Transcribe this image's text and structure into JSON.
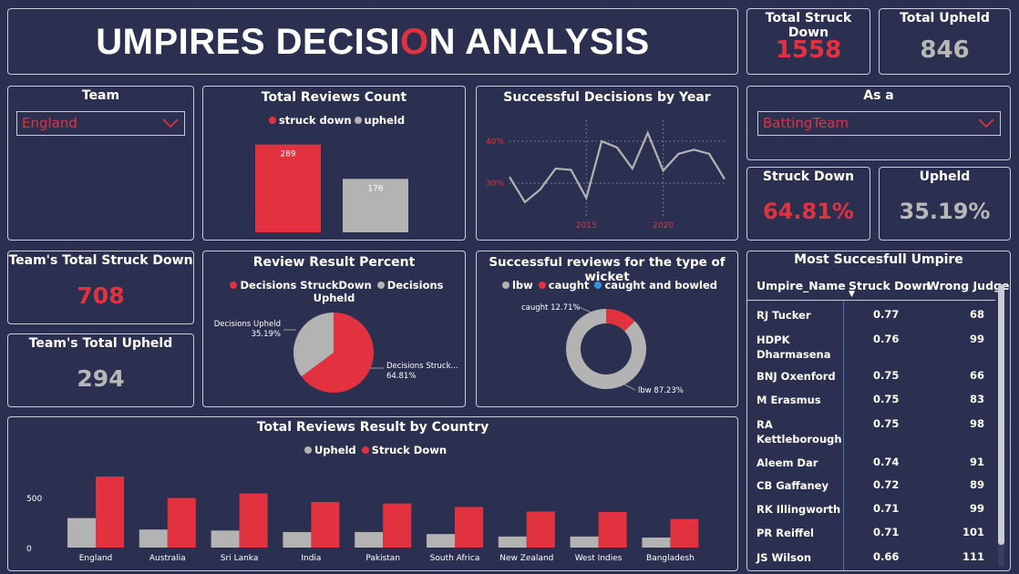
{
  "title": {
    "before": "UMPIRES DECISI",
    "highlight": "O",
    "after": "N ANALYSIS"
  },
  "kpis": {
    "total_struck_down": {
      "label": "Total Struck Down",
      "value": "1558"
    },
    "total_upheld": {
      "label": "Total Upheld",
      "value": "846"
    },
    "struck_down_pct": {
      "label": "Struck Down",
      "value": "64.81%"
    },
    "upheld_pct": {
      "label": "Upheld",
      "value": "35.19%"
    },
    "team_struck_down": {
      "label": "Team's Total Struck Down",
      "value": "708"
    },
    "team_upheld": {
      "label": "Team's Total Upheld",
      "value": "294"
    }
  },
  "slicers": {
    "team": {
      "label": "Team",
      "value": "England"
    },
    "as_a": {
      "label": "As a",
      "value": "BattingTeam"
    }
  },
  "colors": {
    "struck_down": "#e23240",
    "upheld": "#b3b3b3",
    "caught_and_bowled": "#3b8fe6",
    "background": "#2c3050"
  },
  "chart_data": [
    {
      "type": "bar",
      "title": "Total Reviews Count",
      "categories": [
        "struck down",
        "upheld"
      ],
      "values": [
        289,
        176
      ],
      "legend": [
        "struck down",
        "upheld"
      ],
      "data_labels": [
        "289",
        "176"
      ],
      "ylim": [
        0,
        300
      ]
    },
    {
      "type": "line",
      "title": "Successful Decisions by Year",
      "x": [
        2010,
        2011,
        2012,
        2013,
        2014,
        2015,
        2016,
        2017,
        2018,
        2019,
        2020,
        2021,
        2022,
        2023,
        2024
      ],
      "y": [
        31.5,
        25.5,
        28.5,
        33.5,
        33.2,
        26.5,
        40.0,
        38.5,
        33.5,
        42.0,
        33.0,
        37.0,
        38.0,
        37.0,
        31.0
      ],
      "x_ticks": [
        "2015",
        "2020"
      ],
      "y_ticks": [
        "30%",
        "40%"
      ],
      "ylim": [
        22,
        45
      ],
      "grid": true
    },
    {
      "type": "pie",
      "title": "Review Result Percent",
      "legend": [
        "Decisions StruckDown",
        "Decisions Upheld"
      ],
      "slices": [
        {
          "label": "Decisions StruckDown",
          "value": 64.81,
          "display": "Decisions Struck...",
          "pct": "64.81%"
        },
        {
          "label": "Decisions Upheld",
          "value": 35.19,
          "display": "Decisions Upheld",
          "pct": "35.19%"
        }
      ]
    },
    {
      "type": "pie",
      "title": "Successful reviews for the type of wicket",
      "legend": [
        "lbw",
        "caught",
        "caught and bowled"
      ],
      "slices": [
        {
          "label": "lbw",
          "value": 87.23,
          "display": "lbw 87.23%"
        },
        {
          "label": "caught",
          "value": 12.71,
          "display": "caught 12.71%"
        },
        {
          "label": "caught and bowled",
          "value": 0.06
        }
      ]
    },
    {
      "type": "bar",
      "title": "Total Reviews Result by Country",
      "categories": [
        "England",
        "Australia",
        "Sri Lanka",
        "India",
        "Pakistan",
        "South Africa",
        "New Zealand",
        "West Indies",
        "Bangladesh"
      ],
      "series": [
        {
          "name": "Upheld",
          "values": [
            294,
            180,
            170,
            155,
            155,
            135,
            110,
            110,
            100
          ]
        },
        {
          "name": "Struck Down",
          "values": [
            708,
            495,
            540,
            455,
            440,
            405,
            360,
            355,
            285
          ]
        }
      ],
      "y_ticks": [
        "0",
        "500"
      ],
      "ylim": [
        0,
        750
      ]
    },
    {
      "type": "table",
      "title": "Most Succesfull Umpire",
      "columns": [
        "Umpire_Name",
        "Struck Down",
        "Wrong Judge"
      ],
      "rows": [
        [
          "RJ Tucker",
          "0.77",
          "68"
        ],
        [
          "HDPK Dharmasena",
          "0.76",
          "99"
        ],
        [
          "BNJ Oxenford",
          "0.75",
          "66"
        ],
        [
          "M Erasmus",
          "0.75",
          "83"
        ],
        [
          "RA Kettleborough",
          "0.75",
          "98"
        ],
        [
          "Aleem Dar",
          "0.74",
          "91"
        ],
        [
          "CB Gaffaney",
          "0.72",
          "89"
        ],
        [
          "RK Illingworth",
          "0.71",
          "99"
        ],
        [
          "PR Reiffel",
          "0.71",
          "101"
        ],
        [
          "JS Wilson",
          "0.66",
          "111"
        ]
      ]
    }
  ]
}
